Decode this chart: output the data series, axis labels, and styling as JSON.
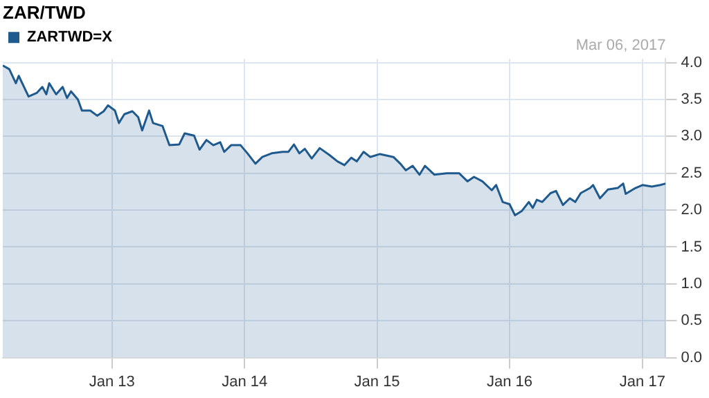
{
  "chart_data": {
    "type": "area",
    "title": "ZAR/TWD",
    "annotations": [
      "Mar 06, 2017"
    ],
    "x": [
      "2012-03-06",
      "2012-03-24",
      "2012-04-11",
      "2012-04-19",
      "2012-05-16",
      "2012-06-08",
      "2012-06-23",
      "2012-07-04",
      "2012-07-12",
      "2012-07-31",
      "2012-08-18",
      "2012-08-30",
      "2012-09-10",
      "2012-09-29",
      "2012-10-10",
      "2012-11-02",
      "2012-11-21",
      "2012-12-09",
      "2012-12-21",
      "2013-01-09",
      "2013-01-20",
      "2013-02-04",
      "2013-02-26",
      "2013-03-14",
      "2013-03-25",
      "2013-04-13",
      "2013-04-24",
      "2013-05-20",
      "2013-06-08",
      "2013-07-05",
      "2013-07-20",
      "2013-08-15",
      "2013-08-30",
      "2013-09-18",
      "2013-10-07",
      "2013-10-26",
      "2013-11-06",
      "2013-11-25",
      "2013-12-21",
      "2014-01-09",
      "2014-01-31",
      "2014-02-19",
      "2014-03-17",
      "2014-04-16",
      "2014-05-02",
      "2014-05-17",
      "2014-06-01",
      "2014-06-16",
      "2014-07-05",
      "2014-07-27",
      "2014-08-22",
      "2014-09-14",
      "2014-10-03",
      "2014-10-22",
      "2014-11-06",
      "2014-11-25",
      "2014-12-13",
      "2015-01-09",
      "2015-02-15",
      "2015-03-06",
      "2015-03-21",
      "2015-04-09",
      "2015-04-28",
      "2015-05-13",
      "2015-06-08",
      "2015-07-12",
      "2015-08-15",
      "2015-09-07",
      "2015-09-25",
      "2015-10-18",
      "2015-11-13",
      "2015-11-25",
      "2015-12-13",
      "2016-01-01",
      "2016-01-16",
      "2016-02-04",
      "2016-02-23",
      "2016-03-05",
      "2016-03-16",
      "2016-03-31",
      "2016-04-23",
      "2016-05-08",
      "2016-05-27",
      "2016-06-15",
      "2016-06-30",
      "2016-07-15",
      "2016-08-10",
      "2016-08-18",
      "2016-09-06",
      "2016-09-28",
      "2016-10-25",
      "2016-11-09",
      "2016-11-16",
      "2016-12-13",
      "2017-01-01",
      "2017-01-27",
      "2017-02-19",
      "2017-03-06"
    ],
    "series": [
      {
        "name": "ZARTWD=X",
        "color": "#1f5a8e",
        "values": [
          3.96,
          3.91,
          3.72,
          3.82,
          3.54,
          3.59,
          3.67,
          3.57,
          3.72,
          3.57,
          3.67,
          3.52,
          3.61,
          3.5,
          3.35,
          3.35,
          3.28,
          3.34,
          3.42,
          3.35,
          3.18,
          3.3,
          3.34,
          3.26,
          3.08,
          3.35,
          3.18,
          3.14,
          2.88,
          2.89,
          3.04,
          3.01,
          2.82,
          2.95,
          2.88,
          2.92,
          2.79,
          2.88,
          2.88,
          2.77,
          2.63,
          2.72,
          2.77,
          2.79,
          2.79,
          2.89,
          2.77,
          2.83,
          2.7,
          2.84,
          2.75,
          2.66,
          2.61,
          2.71,
          2.66,
          2.79,
          2.72,
          2.76,
          2.72,
          2.63,
          2.54,
          2.6,
          2.48,
          2.6,
          2.48,
          2.5,
          2.5,
          2.39,
          2.45,
          2.39,
          2.27,
          2.34,
          2.11,
          2.08,
          1.93,
          1.99,
          2.11,
          2.03,
          2.14,
          2.11,
          2.23,
          2.26,
          2.07,
          2.16,
          2.11,
          2.23,
          2.3,
          2.34,
          2.16,
          2.28,
          2.3,
          2.36,
          2.22,
          2.3,
          2.34,
          2.32,
          2.34,
          2.36
        ]
      }
    ],
    "xlim": [
      "2012-03-06",
      "2017-03-06"
    ],
    "xticks": [
      {
        "value": "2013-01-01",
        "label": "Jan 13"
      },
      {
        "value": "2014-01-01",
        "label": "Jan 14"
      },
      {
        "value": "2015-01-01",
        "label": "Jan 15"
      },
      {
        "value": "2016-01-01",
        "label": "Jan 16"
      },
      {
        "value": "2017-01-01",
        "label": "Jan 17"
      }
    ],
    "ylim": [
      0,
      4.05
    ],
    "yticks": [
      {
        "value": 0,
        "label": "0.0"
      },
      0.5,
      {
        "value": 1,
        "label": "1.0"
      },
      1.5,
      {
        "value": 2,
        "label": "2.0"
      },
      2.5,
      {
        "value": 3,
        "label": "3.0"
      },
      3.5,
      {
        "value": 4,
        "label": "4.0"
      }
    ],
    "grid": true,
    "legend": "top left",
    "marker": "none",
    "line_style": "solid"
  }
}
